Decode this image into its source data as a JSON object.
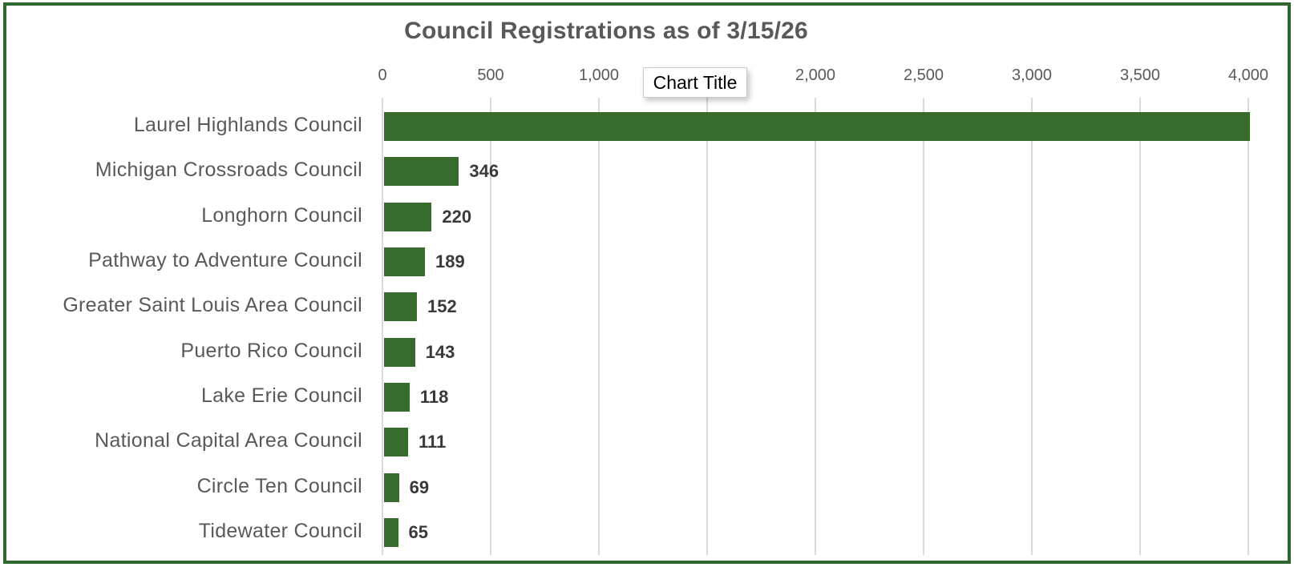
{
  "title": "Council Registrations as of 3/15/26",
  "overlay_box": {
    "text": "Chart Title"
  },
  "colors": {
    "bar": "#376A2D",
    "frame_border": "#2E6730",
    "gridline": "#D9D9D9",
    "axis_text": "#595959",
    "category_text": "#595959",
    "value_label_text": "#3A3A3A",
    "title_text": "#595959",
    "overlay_border": "#C8C8C8",
    "background": "#FFFFFF"
  },
  "chart_data": {
    "type": "bar",
    "orientation": "horizontal",
    "title": "Council Registrations as of 3/15/26",
    "categories": [
      "Laurel Highlands Council",
      "Michigan Crossroads Council",
      "Longhorn Council",
      "Pathway to Adventure Council",
      "Greater Saint Louis Area Council",
      "Puerto Rico Council",
      "Lake Erie Council",
      "National Capital Area Council",
      "Circle Ten Council",
      "Tidewater Council"
    ],
    "values": [
      4000,
      346,
      220,
      189,
      152,
      143,
      118,
      111,
      69,
      65
    ],
    "data_labels": [
      "",
      "346",
      "220",
      "189",
      "152",
      "143",
      "118",
      "111",
      "69",
      "65"
    ],
    "xlabel": "",
    "ylabel": "",
    "xlim": [
      0,
      4000
    ],
    "x_tick_values": [
      0,
      500,
      1000,
      1500,
      2000,
      2500,
      3000,
      3500,
      4000
    ],
    "x_tick_labels": [
      "0",
      "500",
      "1,000",
      "1,500",
      "2,000",
      "2,500",
      "3,000",
      "3,500",
      "4,000"
    ],
    "grid": "vertical-gridlines-on",
    "legend": "none",
    "notes": "Top bar (Laurel Highlands Council) extends to the 4,000 axis maximum with no visible data label; a floating 'Chart Title' placeholder box overlaps and hides the 1,500 axis tick label."
  }
}
